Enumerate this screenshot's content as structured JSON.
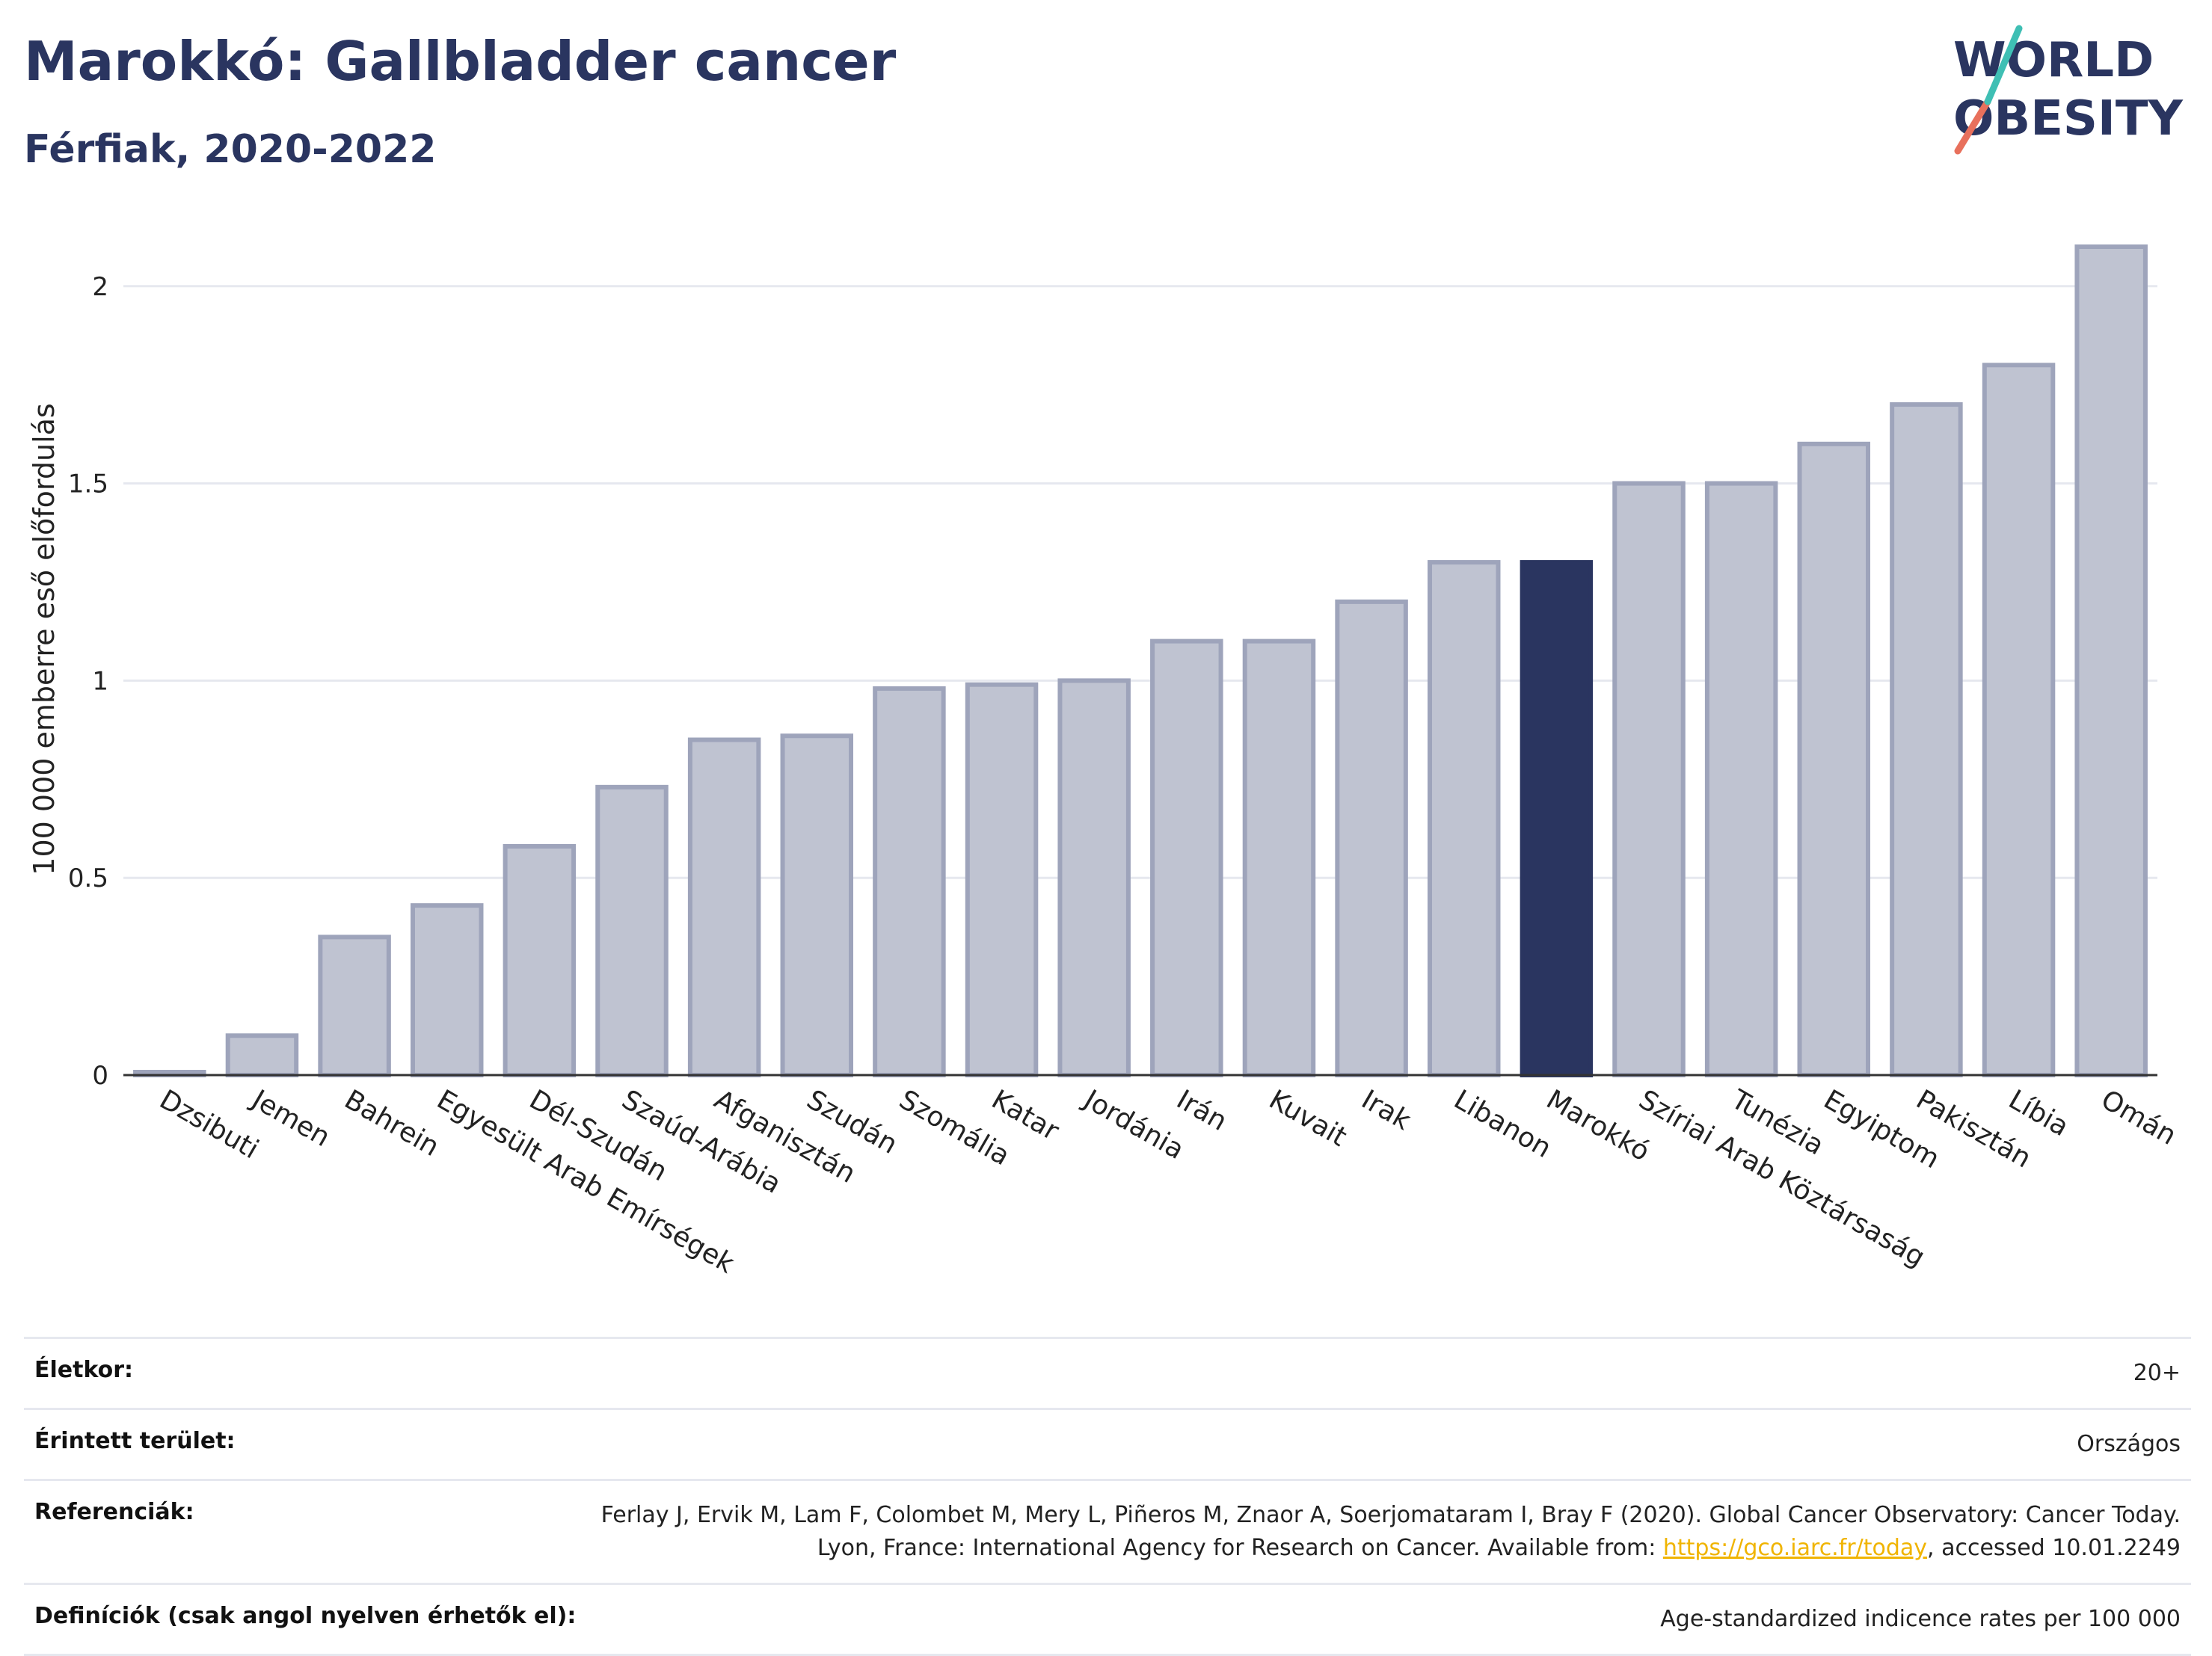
{
  "header": {
    "title": "Marokkó: Gallbladder cancer",
    "subtitle": "Férfiak, 2020-2022"
  },
  "logo": {
    "line1": "WORLD",
    "line2": "OBESITY"
  },
  "colors": {
    "bar": "#bfc3d1",
    "bar_stroke": "#9ea4bb",
    "highlight": "#2a3560",
    "grid": "#e6e8ef"
  },
  "chart_data": {
    "type": "bar",
    "ylabel": "100 000 emberre eső előfordulás",
    "ylim": [
      0,
      2.1
    ],
    "yticks": [
      "0",
      "0.5",
      "1",
      "1.5",
      "2"
    ],
    "highlight": "Marokkó",
    "categories": [
      "Dzsibuti",
      "Jemen",
      "Bahrein",
      "Egyesült Arab Emírségek",
      "Dél-Szudán",
      "Szaúd-Arábia",
      "Afganisztán",
      "Szudán",
      "Szomália",
      "Katar",
      "Jordánia",
      "Irán",
      "Kuvait",
      "Irak",
      "Libanon",
      "Marokkó",
      "Szíriai Arab Köztársaság",
      "Tunézia",
      "Egyiptom",
      "Pakisztán",
      "Líbia",
      "Omán"
    ],
    "values": [
      0.0,
      0.1,
      0.35,
      0.43,
      0.58,
      0.73,
      0.85,
      0.86,
      0.98,
      0.99,
      1.0,
      1.1,
      1.1,
      1.2,
      1.3,
      1.3,
      1.5,
      1.5,
      1.6,
      1.7,
      1.8,
      2.1
    ]
  },
  "footer": {
    "age_label": "Életkor:",
    "age_value": "20+",
    "area_label": "Érintett terület:",
    "area_value": "Országos",
    "ref_label": "Referenciák:",
    "ref_text_1": "Ferlay J, Ervik M, Lam F, Colombet M, Mery L, Piñeros M, Znaor A, Soerjomataram I, Bray F (2020). Global Cancer Observatory: Cancer Today. Lyon, France: International Agency for Research on Cancer. Available from: ",
    "ref_link": "https://gco.iarc.fr/today",
    "ref_text_2": ", accessed 10.01.2249",
    "def_label": "Definíciók (csak angol nyelven érhetők el):",
    "def_value": "Age-standardized indicence rates per 100 000"
  }
}
